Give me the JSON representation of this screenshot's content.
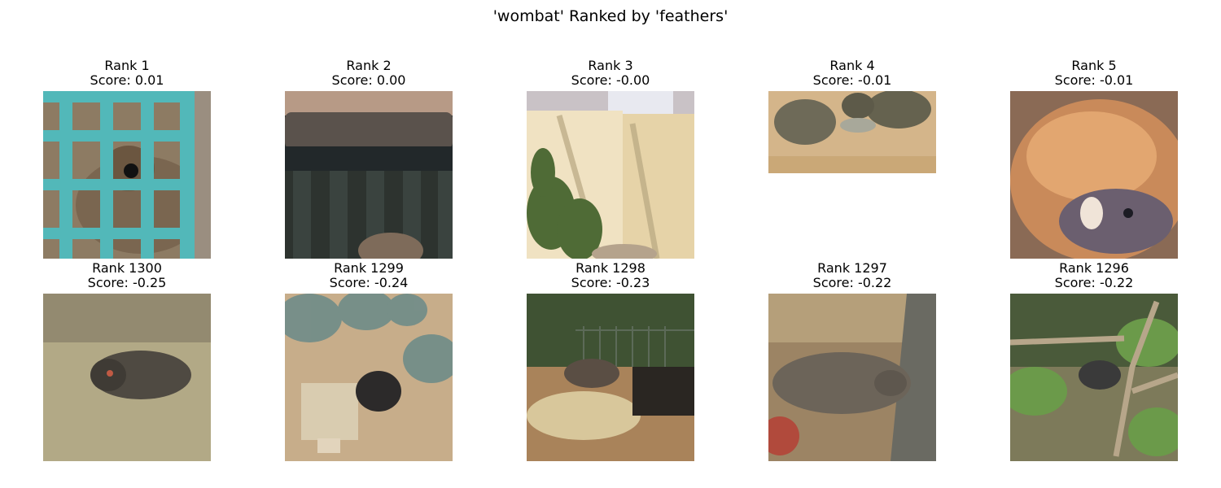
{
  "figure": {
    "title": "'wombat' Ranked by 'feathers'",
    "top_row": [
      {
        "rank": "Rank 1",
        "score": "Score: 0.01"
      },
      {
        "rank": "Rank 2",
        "score": "Score: 0.00"
      },
      {
        "rank": "Rank 3",
        "score": "Score: -0.00"
      },
      {
        "rank": "Rank 4",
        "score": "Score: -0.01"
      },
      {
        "rank": "Rank 5",
        "score": "Score: -0.01"
      }
    ],
    "bottom_row": [
      {
        "rank": "Rank 1300",
        "score": "Score: -0.25"
      },
      {
        "rank": "Rank 1299",
        "score": "Score: -0.24"
      },
      {
        "rank": "Rank 1298",
        "score": "Score: -0.23"
      },
      {
        "rank": "Rank 1297",
        "score": "Score: -0.22"
      },
      {
        "rank": "Rank 1296",
        "score": "Score: -0.22"
      }
    ]
  }
}
